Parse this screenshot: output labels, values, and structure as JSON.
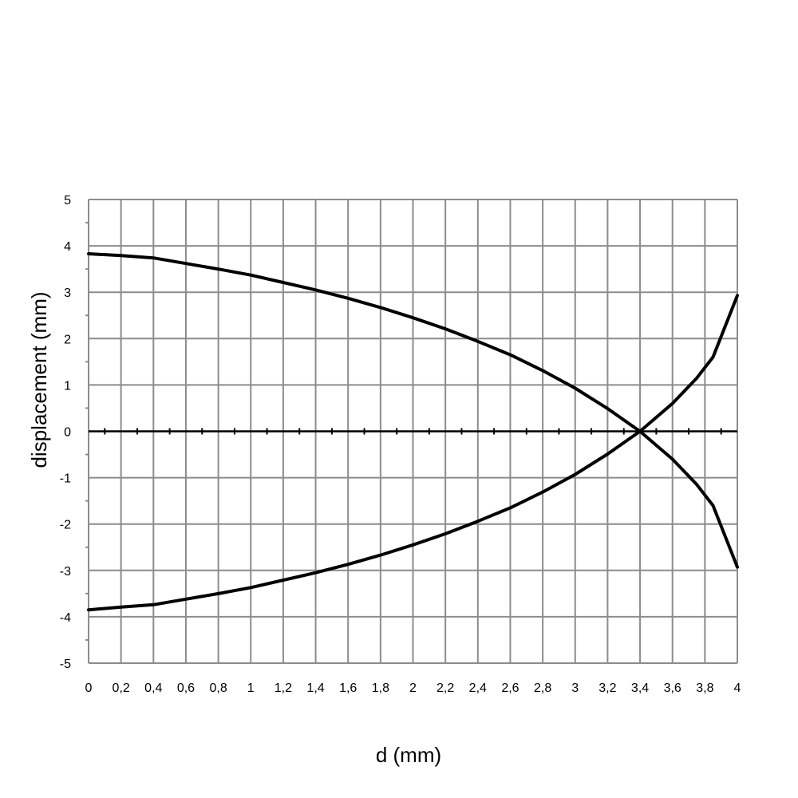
{
  "chart_data": {
    "type": "line",
    "title": "",
    "xlabel": "d (mm)",
    "ylabel": "displacement (mm)",
    "xlim": [
      0,
      4
    ],
    "ylim": [
      -5,
      5
    ],
    "x_ticks": [
      0,
      0.2,
      0.4,
      0.6,
      0.8,
      1,
      1.2,
      1.4,
      1.6,
      1.8,
      2,
      2.2,
      2.4,
      2.6,
      2.8,
      3,
      3.2,
      3.4,
      3.6,
      3.8,
      4
    ],
    "x_tick_labels": [
      "0",
      "0,2",
      "0,4",
      "0,6",
      "0,8",
      "1",
      "1,2",
      "1,4",
      "1,6",
      "1,8",
      "2",
      "2,2",
      "2,4",
      "2,6",
      "2,8",
      "3",
      "3,2",
      "3,4",
      "3,6",
      "3,8",
      "4"
    ],
    "y_ticks": [
      5,
      4,
      3,
      2,
      1,
      0,
      -1,
      -2,
      -3,
      -4,
      -5
    ],
    "y_tick_labels": [
      "5",
      "4",
      "3",
      "2",
      "1",
      "0",
      "-1",
      "-2",
      "-3",
      "-4",
      "-5"
    ],
    "grid": true,
    "legend": "none",
    "line_color": "#000000",
    "grid_color": "#8c8c8c",
    "series": [
      {
        "x": [
          0,
          0.2,
          0.4,
          0.6,
          0.8,
          1,
          1.2,
          1.4,
          1.6,
          1.8,
          2,
          2.2,
          2.4,
          2.6,
          2.8,
          3,
          3.2,
          3.4,
          3.6,
          3.75,
          3.85,
          4
        ],
        "values": [
          3.83,
          3.79,
          3.74,
          3.62,
          3.5,
          3.37,
          3.21,
          3.05,
          2.87,
          2.67,
          2.45,
          2.21,
          1.94,
          1.65,
          1.31,
          0.93,
          0.49,
          0,
          -0.6,
          -1.15,
          -1.6,
          -2.93
        ]
      },
      {
        "x": [
          0,
          0.2,
          0.4,
          0.6,
          0.8,
          1,
          1.2,
          1.4,
          1.6,
          1.8,
          2,
          2.2,
          2.4,
          2.6,
          2.8,
          3,
          3.2,
          3.4,
          3.6,
          3.75,
          3.85,
          4
        ],
        "values": [
          -3.85,
          -3.79,
          -3.74,
          -3.62,
          -3.5,
          -3.37,
          -3.21,
          -3.05,
          -2.87,
          -2.67,
          -2.45,
          -2.21,
          -1.94,
          -1.65,
          -1.31,
          -0.93,
          -0.49,
          0,
          0.6,
          1.15,
          1.6,
          2.93
        ]
      }
    ]
  }
}
